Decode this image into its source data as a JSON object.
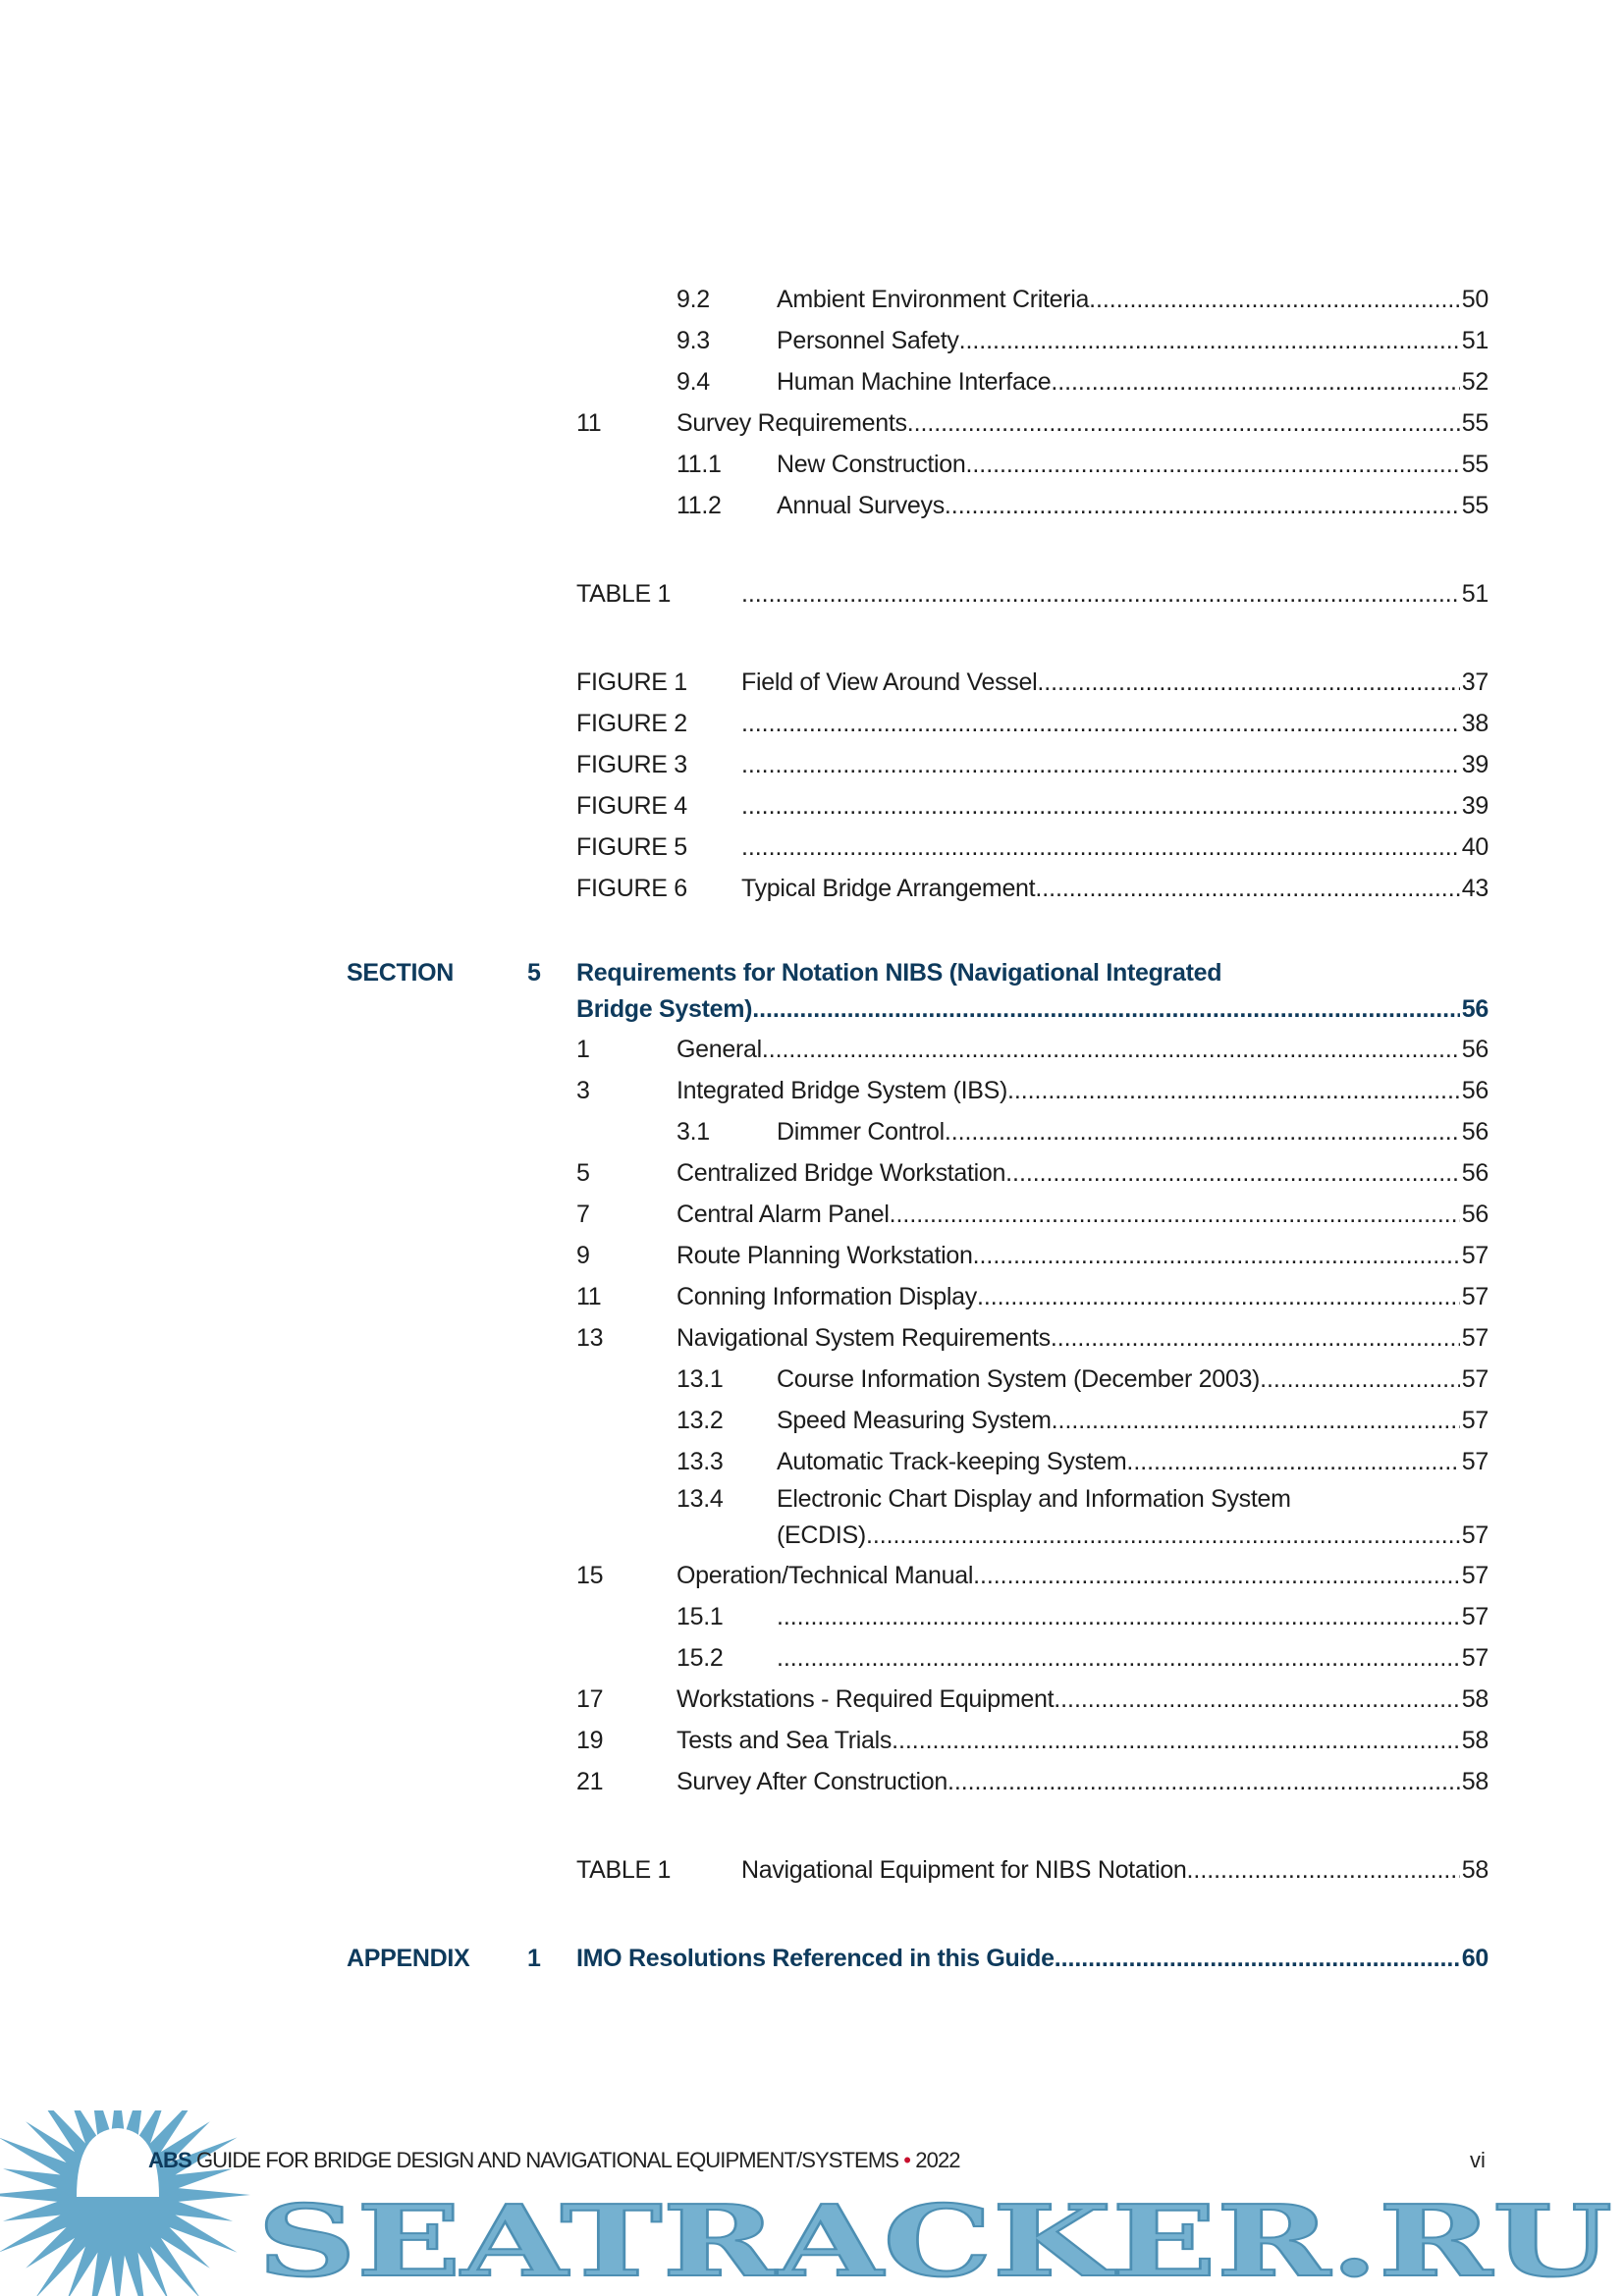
{
  "toc": [
    {
      "rows": [
        {
          "type": "l2",
          "num": "9.2",
          "title": "Ambient Environment Criteria",
          "page": "50"
        },
        {
          "type": "l2",
          "num": "9.3",
          "title": "Personnel Safety",
          "page": "51"
        },
        {
          "type": "l2",
          "num": "9.4",
          "title": "Human Machine Interface",
          "page": "52"
        },
        {
          "type": "l1",
          "num": "11",
          "title": "Survey Requirements",
          "page": "55"
        },
        {
          "type": "l2",
          "num": "11.1",
          "title": "New Construction",
          "page": "55"
        },
        {
          "type": "l2",
          "num": "11.2",
          "title": "Annual Surveys",
          "page": "55"
        }
      ]
    },
    {
      "rows": [
        {
          "type": "tb",
          "num": "TABLE 1",
          "title": "",
          "page": "51"
        }
      ]
    },
    {
      "rows": [
        {
          "type": "tb",
          "num": "FIGURE 1",
          "title": "Field of View Around Vessel",
          "page": "37"
        },
        {
          "type": "tb",
          "num": "FIGURE 2",
          "title": "",
          "page": "38"
        },
        {
          "type": "tb",
          "num": "FIGURE 3",
          "title": "",
          "page": "39"
        },
        {
          "type": "tb",
          "num": "FIGURE 4",
          "title": "",
          "page": "39"
        },
        {
          "type": "tb",
          "num": "FIGURE 5",
          "title": "",
          "page": "40"
        },
        {
          "type": "tb",
          "num": "FIGURE 6",
          "title": "Typical Bridge Arrangement",
          "page": "43"
        }
      ]
    },
    {
      "rows": [
        {
          "type": "sec",
          "label": "SECTION",
          "num": "5",
          "title_line1": "Requirements for Notation NIBS (Navigational Integrated",
          "title": "Bridge System)",
          "page": "56"
        },
        {
          "type": "l1",
          "num": "1",
          "title": "General",
          "page": "56"
        },
        {
          "type": "l1",
          "num": "3",
          "title": "Integrated Bridge System (IBS)",
          "page": "56"
        },
        {
          "type": "l2",
          "num": "3.1",
          "title": "Dimmer Control",
          "page": "56"
        },
        {
          "type": "l1",
          "num": "5",
          "title": "Centralized Bridge Workstation",
          "page": "56"
        },
        {
          "type": "l1",
          "num": "7",
          "title": "Central Alarm Panel",
          "page": "56"
        },
        {
          "type": "l1",
          "num": "9",
          "title": "Route Planning Workstation",
          "page": "57"
        },
        {
          "type": "l1",
          "num": "11",
          "title": "Conning Information Display",
          "page": "57"
        },
        {
          "type": "l1",
          "num": "13",
          "title": "Navigational System Requirements",
          "page": "57"
        },
        {
          "type": "l2",
          "num": "13.1",
          "title": "Course Information System (December 2003)",
          "page": "57"
        },
        {
          "type": "l2",
          "num": "13.2",
          "title": "Speed Measuring System",
          "page": "57"
        },
        {
          "type": "l2",
          "num": "13.3",
          "title": "Automatic Track-keeping System",
          "page": "57"
        },
        {
          "type": "l2",
          "num": "13.4",
          "title_line1": "Electronic Chart Display and Information System",
          "title": "(ECDIS)",
          "page": "57"
        },
        {
          "type": "l1",
          "num": "15",
          "title": "Operation/Technical Manual",
          "page": "57"
        },
        {
          "type": "l2",
          "num": "15.1",
          "title": "",
          "page": "57"
        },
        {
          "type": "l2",
          "num": "15.2",
          "title": "",
          "page": "57"
        },
        {
          "type": "l1",
          "num": "17",
          "title": "Workstations - Required Equipment",
          "page": "58"
        },
        {
          "type": "l1",
          "num": "19",
          "title": "Tests and Sea Trials",
          "page": "58"
        },
        {
          "type": "l1",
          "num": "21",
          "title": "Survey After Construction",
          "page": "58"
        }
      ]
    },
    {
      "rows": [
        {
          "type": "tb",
          "num": "TABLE 1",
          "title": "Navigational Equipment for NIBS Notation",
          "page": "58"
        }
      ]
    },
    {
      "rows": [
        {
          "type": "sec",
          "label": "APPENDIX",
          "num": "1",
          "title": "IMO Resolutions Referenced in this Guide",
          "page": "60"
        }
      ]
    }
  ],
  "footer": {
    "brand": "ABS",
    "title": "GUIDE FOR BRIDGE DESIGN AND NAVIGATIONAL EQUIPMENT/SYSTEMS",
    "separator": "•",
    "year": "2022",
    "page": "vi"
  },
  "watermark": {
    "text": "SEATRACKER.RU",
    "color": "#66a9cb"
  },
  "colors": {
    "heading": "#0e3a5c",
    "separator": "#c8102e",
    "text": "#1c1c1c"
  }
}
